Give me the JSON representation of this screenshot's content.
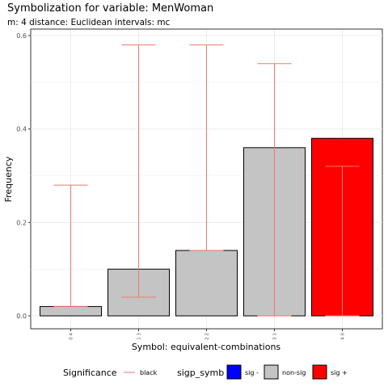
{
  "title": "Symbolization for variable: MenWoman",
  "subtitle": "m: 4  distance:  Euclidean  intervals:  mc",
  "chart_data": {
    "type": "bar",
    "title": "Symbolization for variable: MenWoman",
    "subtitle": "m: 4  distance:  Euclidean  intervals:  mc",
    "xlabel": "Symbol: equivalent-combinations",
    "ylabel": "Frequency",
    "ylim": [
      0,
      0.6
    ],
    "yticks": [
      0.0,
      0.2,
      0.4,
      0.6
    ],
    "ytick_labels": [
      "0.0",
      "0.2",
      "0.4",
      "0.6"
    ],
    "categories": [
      "0 4",
      "1 3",
      "2 2",
      "3 1",
      "4 0"
    ],
    "values": [
      0.02,
      0.1,
      0.14,
      0.36,
      0.38
    ],
    "significance": [
      "non-sig",
      "non-sig",
      "non-sig",
      "non-sig",
      "sig +"
    ],
    "intervals": [
      {
        "low": 0.02,
        "high": 0.28
      },
      {
        "low": 0.04,
        "high": 0.58
      },
      {
        "low": 0.14,
        "high": 0.58
      },
      {
        "low": 0.0,
        "high": 0.54
      },
      {
        "low": 0.0,
        "high": 0.32
      }
    ],
    "grid": true,
    "legend_position": "bottom"
  },
  "colors": {
    "sig -": "#0000ff",
    "non-sig": "#c4c4c4",
    "sig +": "#ff0000",
    "errorbar": "#f8766d",
    "panel_border": "#333333",
    "grid": "#ebebeb"
  },
  "legend": {
    "significance_title": "Significance",
    "significance_item": "black",
    "sigp_title": "sigp_symb",
    "sigp_items": [
      {
        "label": "sig -",
        "color": "#0000ff"
      },
      {
        "label": "non-sig",
        "color": "#c4c4c4"
      },
      {
        "label": "sig +",
        "color": "#ff0000"
      }
    ]
  }
}
